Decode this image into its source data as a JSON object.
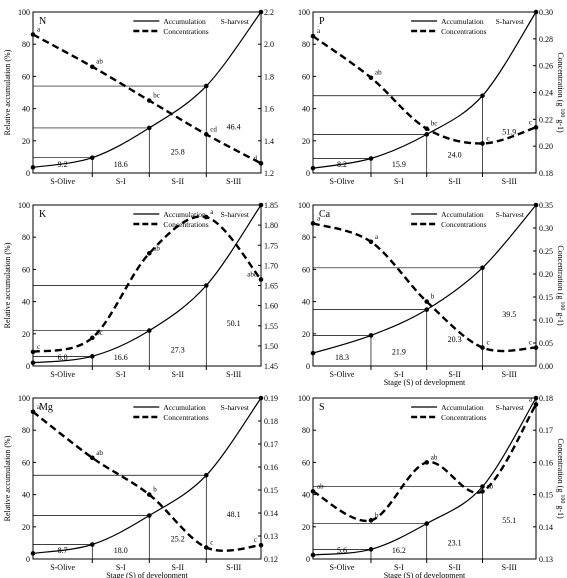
{
  "figure": {
    "legend": {
      "accumulation": "Accumulation",
      "concentrations": "Concentrations"
    },
    "stage_labels": [
      "S-Olive",
      "S-I",
      "S-II",
      "S-III"
    ],
    "harvest_label": "S-harvest"
  },
  "chart_data": [
    {
      "type": "line",
      "panel": "N",
      "title": "N",
      "ylabel": "Relative accumulation (%)",
      "y2label": "",
      "xlabel": "",
      "ylim": [
        0,
        100
      ],
      "y2lim": [
        1.2,
        2.2
      ],
      "yticks": [
        0,
        20,
        40,
        60,
        80,
        100
      ],
      "y2ticks": [
        1.2,
        1.4,
        1.6,
        1.8,
        2.0,
        2.2
      ],
      "x": [
        0,
        1,
        2,
        3,
        4
      ],
      "series": [
        {
          "name": "Accumulation",
          "values": [
            3.5,
            9.5,
            28,
            54,
            100
          ]
        },
        {
          "name": "Concentrations",
          "values": [
            2.06,
            1.86,
            1.65,
            1.44,
            1.26
          ],
          "letters": [
            "a",
            "ab",
            "bc",
            "cd",
            "d"
          ]
        }
      ],
      "segment_labels": [
        "9.2",
        "18.6",
        "25.8",
        "46.4"
      ]
    },
    {
      "type": "line",
      "panel": "P",
      "title": "P",
      "ylabel": "",
      "y2label": "Concentration (g 100 g-1)",
      "xlabel": "",
      "ylim": [
        0,
        100
      ],
      "y2lim": [
        0.18,
        0.3
      ],
      "yticks": [
        0,
        20,
        40,
        60,
        80,
        100
      ],
      "y2ticks": [
        0.18,
        0.2,
        0.22,
        0.24,
        0.26,
        0.28,
        0.3
      ],
      "x": [
        0,
        1,
        2,
        3,
        4
      ],
      "series": [
        {
          "name": "Accumulation",
          "values": [
            3,
            9,
            24,
            48,
            100
          ]
        },
        {
          "name": "Concentrations",
          "values": [
            0.282,
            0.251,
            0.213,
            0.202,
            0.214
          ],
          "letters": [
            "a",
            "ab",
            "bc",
            "c",
            "c"
          ]
        }
      ],
      "segment_labels": [
        "8.2",
        "15.9",
        "24.0",
        "51.9"
      ]
    },
    {
      "type": "line",
      "panel": "K",
      "title": "K",
      "ylabel": "Relative accumulation (%)",
      "y2label": "",
      "xlabel": "",
      "ylim": [
        0,
        100
      ],
      "y2lim": [
        1.45,
        1.85
      ],
      "yticks": [
        0,
        20,
        40,
        60,
        80,
        100
      ],
      "y2ticks": [
        1.45,
        1.5,
        1.55,
        1.6,
        1.65,
        1.7,
        1.75,
        1.8,
        1.85
      ],
      "x": [
        0,
        1,
        2,
        3,
        4
      ],
      "series": [
        {
          "name": "Accumulation",
          "values": [
            2,
            6,
            22,
            50,
            100
          ]
        },
        {
          "name": "Concentrations",
          "values": [
            1.485,
            1.52,
            1.73,
            1.82,
            1.665
          ],
          "letters": [
            "c",
            "bc",
            "ab",
            "a",
            "abc"
          ]
        }
      ],
      "segment_labels": [
        "6.0",
        "16.6",
        "27.3",
        "50.1"
      ]
    },
    {
      "type": "line",
      "panel": "Ca",
      "title": "Ca",
      "ylabel": "",
      "y2label": "Concentration (g 100 g-1)",
      "xlabel": "Stage (S) of development",
      "ylim": [
        0,
        100
      ],
      "y2lim": [
        0,
        0.35
      ],
      "yticks": [
        0,
        20,
        40,
        60,
        80,
        100
      ],
      "y2ticks": [
        0,
        0.05,
        0.1,
        0.15,
        0.2,
        0.25,
        0.3,
        0.35
      ],
      "x": [
        0,
        1,
        2,
        3,
        4
      ],
      "series": [
        {
          "name": "Accumulation",
          "values": [
            8,
            19,
            35,
            61,
            100
          ]
        },
        {
          "name": "Concentrations",
          "values": [
            0.31,
            0.27,
            0.14,
            0.04,
            0.04
          ],
          "letters": [
            "a",
            "a",
            "b",
            "c",
            "c"
          ]
        }
      ],
      "segment_labels": [
        "18.3",
        "21.9",
        "20.3",
        "39.5"
      ]
    },
    {
      "type": "line",
      "panel": "Mg",
      "title": "Mg",
      "ylabel": "Relative accumulation (%)",
      "y2label": "",
      "xlabel": "Stage (S) of development",
      "ylim": [
        0,
        100
      ],
      "y2lim": [
        0.12,
        0.19
      ],
      "yticks": [
        0,
        20,
        40,
        60,
        80,
        100
      ],
      "y2ticks": [
        0.12,
        0.13,
        0.14,
        0.15,
        0.16,
        0.17,
        0.18,
        0.19
      ],
      "x": [
        0,
        1,
        2,
        3,
        4
      ],
      "series": [
        {
          "name": "Accumulation",
          "values": [
            3.5,
            9,
            27,
            52,
            100
          ]
        },
        {
          "name": "Concentrations",
          "values": [
            0.184,
            0.164,
            0.148,
            0.125,
            0.126
          ],
          "letters": [
            "a",
            "ab",
            "b",
            "c",
            "c"
          ]
        }
      ],
      "segment_labels": [
        "8.7",
        "18.0",
        "25.2",
        "48.1"
      ]
    },
    {
      "type": "line",
      "panel": "S",
      "title": "S",
      "ylabel": "",
      "y2label": "Concentration (g 100 g-1)",
      "xlabel": "Stage (S) of development",
      "ylim": [
        0,
        100
      ],
      "y2lim": [
        0.13,
        0.18
      ],
      "yticks": [
        0,
        20,
        40,
        60,
        80,
        100
      ],
      "y2ticks": [
        0.13,
        0.14,
        0.15,
        0.16,
        0.17,
        0.18
      ],
      "x": [
        0,
        1,
        2,
        3,
        4
      ],
      "series": [
        {
          "name": "Accumulation",
          "values": [
            2.5,
            6,
            22,
            45,
            100
          ]
        },
        {
          "name": "Concentrations",
          "values": [
            0.151,
            0.142,
            0.16,
            0.151,
            0.178
          ],
          "letters": [
            "ab",
            "b",
            "ab",
            "ab",
            "a"
          ]
        }
      ],
      "segment_labels": [
        "5.6",
        "16.2",
        "23.1",
        "55.1"
      ]
    }
  ]
}
